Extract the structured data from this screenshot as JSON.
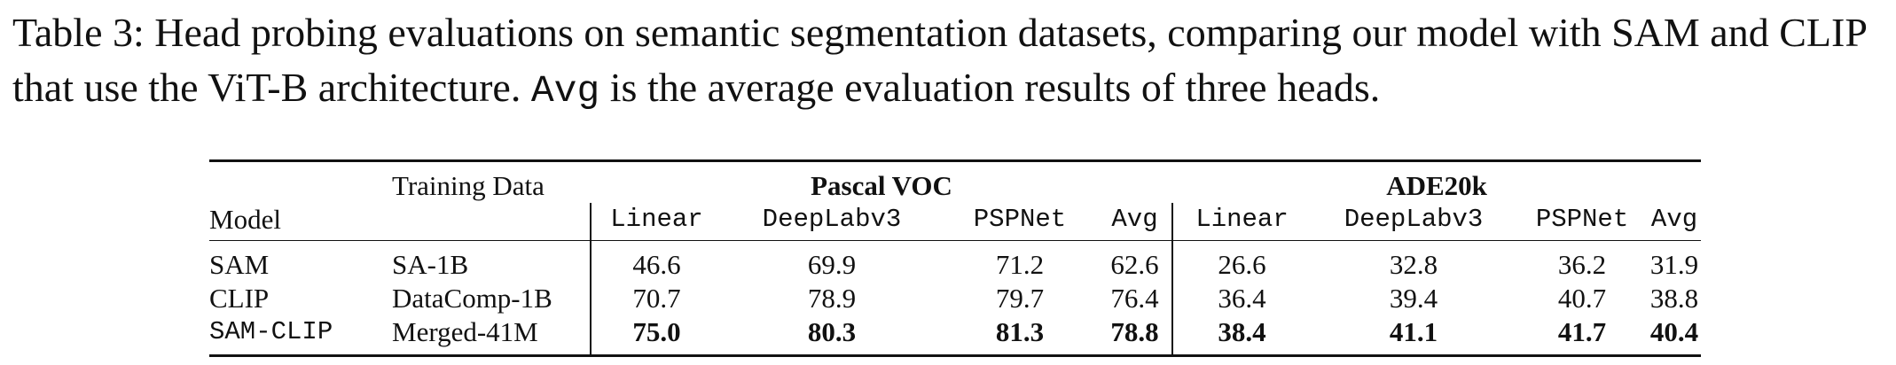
{
  "caption": {
    "label": "Table 3:",
    "text_part1": " Head probing evaluations on semantic segmentation datasets, comparing our model with SAM and CLIP that use the ViT-B architecture. ",
    "code": "Avg",
    "text_part2": " is the average evaluation results of three heads."
  },
  "table": {
    "header": {
      "model": "Model",
      "training_data": "Training Data",
      "group1": "Pascal VOC",
      "group2": "ADE20k",
      "heads": [
        "Linear",
        "DeepLabv3",
        "PSPNet",
        "Avg"
      ]
    },
    "rows": [
      {
        "model": "SAM",
        "model_mono": false,
        "data": "SA-1B",
        "voc": [
          "46.6",
          "69.9",
          "71.2",
          "62.6"
        ],
        "ade": [
          "26.6",
          "32.8",
          "36.2",
          "31.9"
        ],
        "bold": false
      },
      {
        "model": "CLIP",
        "model_mono": false,
        "data": "DataComp-1B",
        "voc": [
          "70.7",
          "78.9",
          "79.7",
          "76.4"
        ],
        "ade": [
          "36.4",
          "39.4",
          "40.7",
          "38.8"
        ],
        "bold": false
      },
      {
        "model": "SAM-CLIP",
        "model_mono": true,
        "data": "Merged-41M",
        "voc": [
          "75.0",
          "80.3",
          "81.3",
          "78.8"
        ],
        "ade": [
          "38.4",
          "41.1",
          "41.7",
          "40.4"
        ],
        "bold": true
      }
    ]
  }
}
